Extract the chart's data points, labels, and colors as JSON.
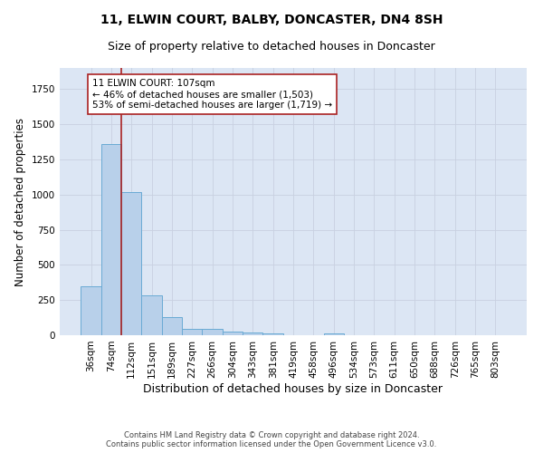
{
  "title": "11, ELWIN COURT, BALBY, DONCASTER, DN4 8SH",
  "subtitle": "Size of property relative to detached houses in Doncaster",
  "xlabel": "Distribution of detached houses by size in Doncaster",
  "ylabel": "Number of detached properties",
  "footer_line1": "Contains HM Land Registry data © Crown copyright and database right 2024.",
  "footer_line2": "Contains public sector information licensed under the Open Government Licence v3.0.",
  "categories": [
    "36sqm",
    "74sqm",
    "112sqm",
    "151sqm",
    "189sqm",
    "227sqm",
    "266sqm",
    "304sqm",
    "343sqm",
    "381sqm",
    "419sqm",
    "458sqm",
    "496sqm",
    "534sqm",
    "573sqm",
    "611sqm",
    "650sqm",
    "688sqm",
    "726sqm",
    "765sqm",
    "803sqm"
  ],
  "values": [
    350,
    1360,
    1020,
    285,
    130,
    42,
    42,
    25,
    18,
    12,
    0,
    0,
    12,
    0,
    0,
    0,
    0,
    0,
    0,
    0,
    0
  ],
  "bar_color": "#b8d0ea",
  "bar_edgecolor": "#6aaad4",
  "bar_linewidth": 0.7,
  "grid_color": "#c8d0e0",
  "background_color": "#dce6f4",
  "vline_color": "#aa2222",
  "vline_linewidth": 1.2,
  "vline_x": 1.5,
  "annotation_text": "11 ELWIN COURT: 107sqm\n← 46% of detached houses are smaller (1,503)\n53% of semi-detached houses are larger (1,719) →",
  "ylim": [
    0,
    1900
  ],
  "title_fontsize": 10,
  "subtitle_fontsize": 9,
  "ylabel_fontsize": 8.5,
  "xlabel_fontsize": 9,
  "tick_fontsize": 7.5,
  "annotation_fontsize": 7.5,
  "footer_fontsize": 6
}
